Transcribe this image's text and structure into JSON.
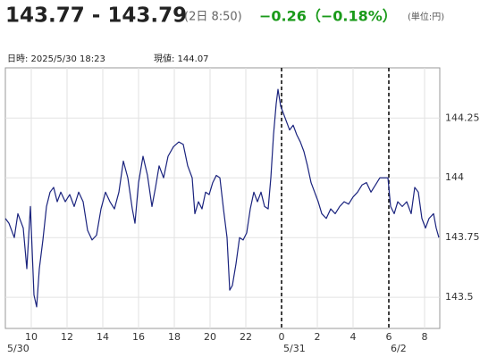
{
  "chart_data": {
    "type": "line",
    "title": "143.77 - 143.79",
    "subtitle": "(2日 8:50)",
    "change": "−0.26（−0.18%）",
    "unit": "(単位:円)",
    "info": [
      "日時: 2025/5/30 18:23",
      "現値: 144.07"
    ],
    "color": "#1a237e",
    "grid": true,
    "xlim": [
      8.55,
      32.85
    ],
    "ylim": [
      143.37,
      144.46
    ],
    "xticks": [
      10,
      12,
      14,
      16,
      18,
      20,
      22,
      {
        "value": 24,
        "label": "0"
      },
      {
        "value": 26,
        "label": "2"
      },
      {
        "value": 28,
        "label": "4"
      },
      {
        "value": 30,
        "label": "6"
      },
      {
        "value": 32,
        "label": "8"
      }
    ],
    "yticks": [
      143.5,
      143.75,
      144,
      144.25
    ],
    "date_markers": [
      {
        "x": 8.55,
        "label": "5/30"
      },
      {
        "x": 24,
        "label": "5/31"
      },
      {
        "x": 30,
        "label": "6/2"
      }
    ],
    "x": [
      8.55,
      8.75,
      9.05,
      9.25,
      9.55,
      9.75,
      9.95,
      10.15,
      10.3,
      10.45,
      10.65,
      10.85,
      11.05,
      11.25,
      11.45,
      11.65,
      11.9,
      12.15,
      12.4,
      12.65,
      12.9,
      13.15,
      13.4,
      13.65,
      13.9,
      14.15,
      14.4,
      14.65,
      14.9,
      15.15,
      15.4,
      15.65,
      15.8,
      16.0,
      16.25,
      16.5,
      16.75,
      16.95,
      17.15,
      17.4,
      17.65,
      17.95,
      18.25,
      18.5,
      18.75,
      19.0,
      19.15,
      19.35,
      19.55,
      19.75,
      19.95,
      20.15,
      20.35,
      20.55,
      20.75,
      20.95,
      21.1,
      21.25,
      21.45,
      21.65,
      21.85,
      22.05,
      22.25,
      22.45,
      22.65,
      22.85,
      23.05,
      23.25,
      23.4,
      23.55,
      23.7,
      23.8,
      23.95,
      24.25,
      24.45,
      24.65,
      24.85,
      25.05,
      25.25,
      25.45,
      25.65,
      25.85,
      26.05,
      26.25,
      26.5,
      26.75,
      27.0,
      27.25,
      27.5,
      27.75,
      28.0,
      28.25,
      28.5,
      28.75,
      29.0,
      29.25,
      29.5,
      29.75,
      29.95,
      30.1,
      30.3,
      30.5,
      30.75,
      31.0,
      31.25,
      31.45,
      31.65,
      31.85,
      32.05,
      32.25,
      32.5,
      32.65,
      32.8
    ],
    "values": [
      143.83,
      143.81,
      143.75,
      143.85,
      143.79,
      143.62,
      143.88,
      143.51,
      143.46,
      143.62,
      143.74,
      143.88,
      143.94,
      143.96,
      143.9,
      143.94,
      143.9,
      143.93,
      143.88,
      143.94,
      143.9,
      143.78,
      143.74,
      143.76,
      143.87,
      143.94,
      143.9,
      143.87,
      143.94,
      144.07,
      144.0,
      143.87,
      143.81,
      143.98,
      144.09,
      144.01,
      143.88,
      143.96,
      144.05,
      144.0,
      144.09,
      144.13,
      144.15,
      144.14,
      144.05,
      144.0,
      143.85,
      143.9,
      143.87,
      143.94,
      143.93,
      143.98,
      144.01,
      144.0,
      143.87,
      143.75,
      143.53,
      143.55,
      143.64,
      143.75,
      143.74,
      143.77,
      143.87,
      143.94,
      143.9,
      143.94,
      143.88,
      143.87,
      144.0,
      144.18,
      144.31,
      144.37,
      144.3,
      144.24,
      144.2,
      144.22,
      144.18,
      144.15,
      144.11,
      144.05,
      143.98,
      143.94,
      143.9,
      143.85,
      143.83,
      143.87,
      143.85,
      143.88,
      143.9,
      143.89,
      143.92,
      143.94,
      143.97,
      143.98,
      143.94,
      143.97,
      144.0,
      144.0,
      144.0,
      143.88,
      143.85,
      143.9,
      143.88,
      143.9,
      143.85,
      143.96,
      143.94,
      143.83,
      143.79,
      143.83,
      143.85,
      143.79,
      143.75
    ]
  }
}
